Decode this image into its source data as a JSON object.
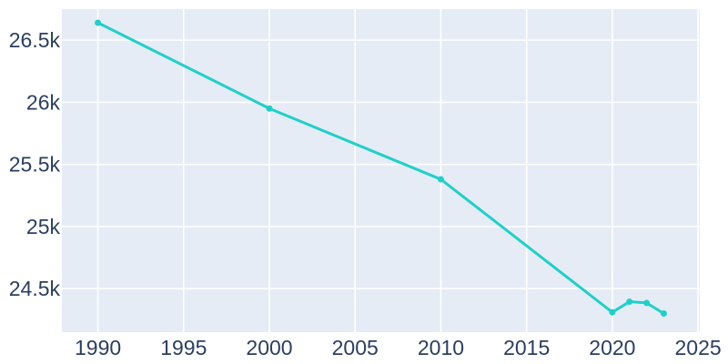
{
  "chart_data": {
    "type": "line",
    "title": "",
    "x": [
      1990,
      2000,
      2010,
      2020,
      2021,
      2022,
      2023
    ],
    "y": [
      26640,
      25950,
      25380,
      24310,
      24395,
      24385,
      24300
    ],
    "x_tick_values": [
      1990,
      1995,
      2000,
      2005,
      2010,
      2015,
      2020,
      2025
    ],
    "x_tick_labels": [
      "1990",
      "1995",
      "2000",
      "2005",
      "2010",
      "2015",
      "2020",
      "2025"
    ],
    "y_tick_values": [
      24500,
      25000,
      25500,
      26000,
      26500
    ],
    "y_tick_labels": [
      "24.5k",
      "25k",
      "25.5k",
      "26k",
      "26.5k"
    ],
    "x_range": [
      1987.9,
      2025.1
    ],
    "y_range": [
      24150,
      26750
    ],
    "grid": true,
    "legend": "none",
    "line_color": "#20d0c8",
    "marker_color": "#20d0c8",
    "plot_bg_color": "#e5ecf6",
    "outer_bg_color": "#ffffff",
    "grid_color": "#ffffff",
    "tick_label_color": "#2a3f5f",
    "line_width": 3,
    "marker_radius": 3.5,
    "tick_font_size": 23
  }
}
